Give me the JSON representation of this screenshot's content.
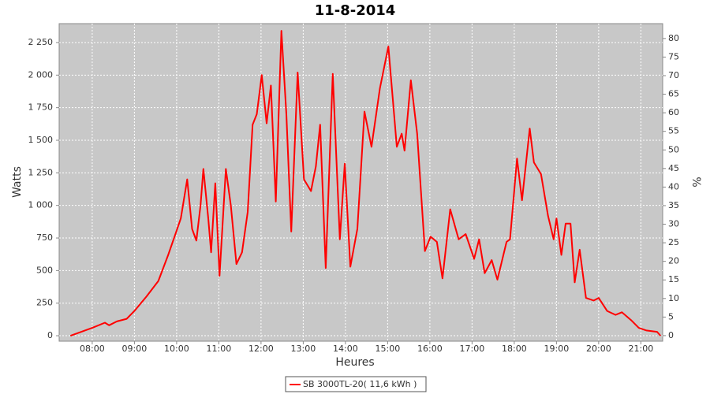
{
  "chart_data": {
    "type": "line",
    "title": "11-8-2014",
    "x_label": "Heures",
    "y_label": "Watts",
    "y2_label": "%",
    "x": [
      "07:29",
      "08:00",
      "08:18",
      "08:24",
      "08:35",
      "08:49",
      "09:00",
      "09:17",
      "09:34",
      "09:48",
      "09:57",
      "10:06",
      "10:15",
      "10:22",
      "10:28",
      "10:34",
      "10:38",
      "10:45",
      "10:49",
      "10:55",
      "11:01",
      "11:10",
      "11:17",
      "11:25",
      "11:33",
      "11:41",
      "11:48",
      "11:54",
      "12:01",
      "12:08",
      "12:14",
      "12:21",
      "12:29",
      "12:36",
      "12:43",
      "12:52",
      "13:01",
      "13:11",
      "13:18",
      "13:24",
      "13:32",
      "13:42",
      "13:52",
      "13:59",
      "14:07",
      "14:17",
      "14:27",
      "14:37",
      "14:49",
      "15:01",
      "15:13",
      "15:20",
      "15:24",
      "15:33",
      "15:42",
      "15:53",
      "16:01",
      "16:10",
      "16:18",
      "16:29",
      "16:41",
      "16:51",
      "17:03",
      "17:10",
      "17:18",
      "17:28",
      "17:36",
      "17:49",
      "17:54",
      "18:04",
      "18:11",
      "18:22",
      "18:28",
      "18:38",
      "18:48",
      "18:56",
      "19:00",
      "19:07",
      "19:13",
      "19:20",
      "19:26",
      "19:33",
      "19:42",
      "19:53",
      "20:00",
      "20:12",
      "20:24",
      "20:33",
      "20:46",
      "20:57",
      "21:08",
      "21:23",
      "21:28"
    ],
    "series": [
      {
        "name": "SB 3000TL-20( 11,6 kWh )",
        "color": "#ff0000",
        "values": [
          0,
          60,
          100,
          80,
          110,
          130,
          190,
          300,
          420,
          620,
          760,
          900,
          1200,
          820,
          730,
          1000,
          1280,
          900,
          640,
          1170,
          460,
          1280,
          1000,
          550,
          640,
          950,
          1620,
          1700,
          2000,
          1630,
          1920,
          1030,
          2340,
          1700,
          800,
          2020,
          1200,
          1110,
          1300,
          1620,
          520,
          2010,
          740,
          1320,
          530,
          820,
          1720,
          1450,
          1900,
          2220,
          1450,
          1550,
          1420,
          1960,
          1550,
          650,
          760,
          720,
          440,
          970,
          740,
          780,
          590,
          740,
          480,
          580,
          430,
          720,
          740,
          1360,
          1040,
          1590,
          1330,
          1240,
          920,
          740,
          900,
          620,
          860,
          860,
          410,
          660,
          290,
          270,
          290,
          190,
          160,
          180,
          120,
          60,
          40,
          30,
          0
        ]
      }
    ],
    "xlim": [
      "07:13",
      "21:31"
    ],
    "xticks": [
      "08:00",
      "09:00",
      "10:00",
      "11:00",
      "12:00",
      "13:00",
      "14:00",
      "15:00",
      "16:00",
      "17:00",
      "18:00",
      "19:00",
      "20:00",
      "21:00"
    ],
    "ylim": [
      -42,
      2395
    ],
    "yticks": [
      0,
      250,
      500,
      750,
      {
        "value": 1000,
        "label": "1 000"
      },
      {
        "value": 1250,
        "label": "1 250"
      },
      {
        "value": 1500,
        "label": "1 500"
      },
      {
        "value": 1750,
        "label": "1 750"
      },
      {
        "value": 2000,
        "label": "2 000"
      },
      {
        "value": 2250,
        "label": "2 250"
      }
    ],
    "y2lim": [
      -1.5,
      84
    ],
    "y2ticks": [
      0,
      5,
      10,
      15,
      20,
      25,
      30,
      35,
      40,
      45,
      50,
      55,
      60,
      65,
      70,
      75,
      80
    ],
    "grid": true,
    "legend": "bottom"
  }
}
